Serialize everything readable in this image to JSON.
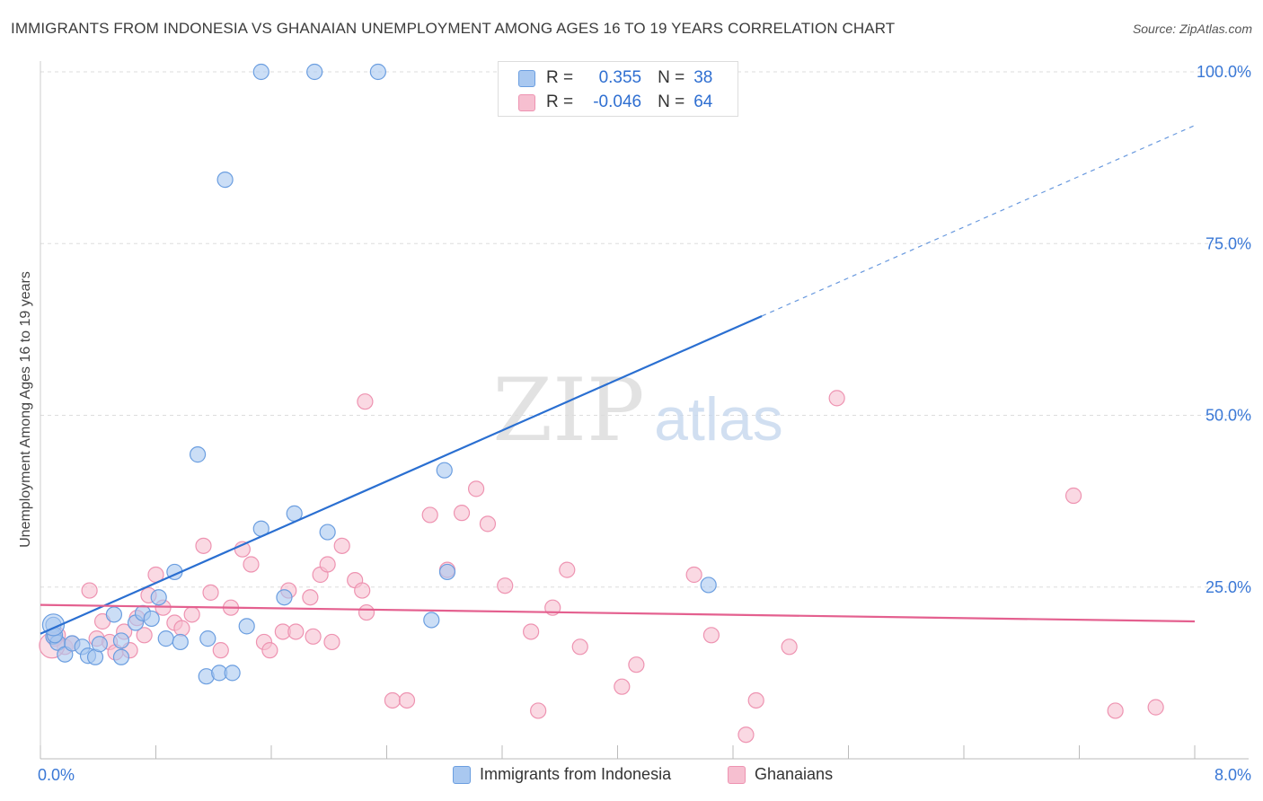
{
  "title": "IMMIGRANTS FROM INDONESIA VS GHANAIAN UNEMPLOYMENT AMONG AGES 16 TO 19 YEARS CORRELATION CHART",
  "source": "Source: ZipAtlas.com",
  "watermark": {
    "zip": "ZIP",
    "atlas": "atlas"
  },
  "legend": {
    "rows": [
      {
        "r_label": "R =",
        "r_value": "0.355",
        "n_label": "N =",
        "n_value": "38"
      },
      {
        "r_label": "R =",
        "r_value": "-0.046",
        "n_label": "N =",
        "n_value": "64"
      }
    ]
  },
  "colors": {
    "blue_fill": "#a9c8f0",
    "blue_stroke": "#6b9ee0",
    "blue_line": "#2a6fd1",
    "pink_fill": "#f6bfd0",
    "pink_stroke": "#ee93b1",
    "pink_line": "#e4608f",
    "tick_label": "#3a78d6",
    "grid": "#dddddd"
  },
  "chart_data": {
    "type": "scatter",
    "title": "IMMIGRANTS FROM INDONESIA VS GHANAIAN UNEMPLOYMENT AMONG AGES 16 TO 19 YEARS CORRELATION CHART",
    "xlabel": "",
    "ylabel": "Unemployment Among Ages 16 to 19 years",
    "xlim": [
      0,
      8
    ],
    "ylim": [
      0,
      100
    ],
    "x_tick_labels": [
      {
        "value": 0,
        "label": "0.0%"
      },
      {
        "value": 8,
        "label": "8.0%"
      }
    ],
    "y_tick_labels": [
      {
        "value": 25,
        "label": "25.0%"
      },
      {
        "value": 50,
        "label": "50.0%"
      },
      {
        "value": 75,
        "label": "75.0%"
      },
      {
        "value": 100,
        "label": "100.0%"
      }
    ],
    "series": [
      {
        "name": "Immigrants from Indonesia",
        "color_key": "blue",
        "trend": {
          "x_start": 0.0,
          "y_start": 18.2,
          "x_solid_end": 5.0,
          "x_end": 8.0,
          "slope": 9.25
        },
        "points": [
          [
            0.09,
            19.5
          ],
          [
            0.09,
            17.8
          ],
          [
            0.12,
            16.9
          ],
          [
            0.17,
            15.2
          ],
          [
            0.22,
            16.8
          ],
          [
            0.29,
            16.3
          ],
          [
            0.33,
            15.0
          ],
          [
            0.38,
            14.8
          ],
          [
            0.41,
            16.7
          ],
          [
            0.51,
            21.0
          ],
          [
            0.56,
            17.2
          ],
          [
            0.56,
            14.8
          ],
          [
            0.66,
            19.8
          ],
          [
            0.71,
            21.2
          ],
          [
            0.77,
            20.4
          ],
          [
            0.82,
            23.5
          ],
          [
            0.87,
            17.5
          ],
          [
            0.93,
            27.2
          ],
          [
            0.97,
            17.0
          ],
          [
            1.09,
            44.3
          ],
          [
            1.16,
            17.5
          ],
          [
            1.15,
            12.0
          ],
          [
            1.24,
            12.5
          ],
          [
            1.33,
            12.5
          ],
          [
            1.43,
            19.3
          ],
          [
            1.53,
            33.5
          ],
          [
            1.69,
            23.5
          ],
          [
            1.76,
            35.7
          ],
          [
            1.99,
            33.0
          ],
          [
            1.28,
            84.3
          ],
          [
            1.53,
            100.0
          ],
          [
            1.9,
            100.0
          ],
          [
            2.34,
            100.0
          ],
          [
            2.71,
            20.2
          ],
          [
            2.8,
            42.0
          ],
          [
            2.82,
            27.2
          ],
          [
            4.63,
            25.3
          ],
          [
            0.1,
            18.0
          ]
        ]
      },
      {
        "name": "Ghanaians",
        "color_key": "pink",
        "trend": {
          "x_start": 0.0,
          "y_start": 22.4,
          "x_end": 8.0,
          "slope": -0.3
        },
        "points": [
          [
            0.12,
            18.0
          ],
          [
            0.17,
            16.3
          ],
          [
            0.22,
            16.8
          ],
          [
            0.34,
            24.5
          ],
          [
            0.39,
            17.5
          ],
          [
            0.43,
            20.0
          ],
          [
            0.48,
            17.0
          ],
          [
            0.52,
            15.5
          ],
          [
            0.58,
            18.5
          ],
          [
            0.62,
            15.8
          ],
          [
            0.67,
            20.5
          ],
          [
            0.72,
            18.0
          ],
          [
            0.75,
            23.8
          ],
          [
            0.8,
            26.8
          ],
          [
            0.85,
            22.0
          ],
          [
            0.93,
            19.8
          ],
          [
            0.98,
            19.0
          ],
          [
            1.05,
            21.0
          ],
          [
            1.13,
            31.0
          ],
          [
            1.18,
            24.2
          ],
          [
            1.25,
            15.8
          ],
          [
            1.32,
            22.0
          ],
          [
            1.4,
            30.5
          ],
          [
            1.46,
            28.3
          ],
          [
            1.55,
            17.0
          ],
          [
            1.59,
            15.8
          ],
          [
            1.68,
            18.5
          ],
          [
            1.72,
            24.5
          ],
          [
            1.77,
            18.5
          ],
          [
            1.87,
            23.5
          ],
          [
            1.89,
            17.8
          ],
          [
            1.94,
            26.8
          ],
          [
            1.99,
            28.3
          ],
          [
            2.02,
            17.0
          ],
          [
            2.09,
            31.0
          ],
          [
            2.18,
            26.0
          ],
          [
            2.23,
            24.5
          ],
          [
            2.26,
            21.3
          ],
          [
            2.25,
            52.0
          ],
          [
            2.44,
            8.5
          ],
          [
            2.54,
            8.5
          ],
          [
            2.7,
            35.5
          ],
          [
            2.82,
            27.5
          ],
          [
            2.92,
            35.8
          ],
          [
            3.02,
            39.3
          ],
          [
            3.1,
            34.2
          ],
          [
            3.22,
            25.2
          ],
          [
            3.4,
            18.5
          ],
          [
            3.45,
            7.0
          ],
          [
            3.55,
            22.0
          ],
          [
            3.65,
            27.5
          ],
          [
            3.74,
            16.3
          ],
          [
            4.03,
            10.5
          ],
          [
            4.13,
            13.7
          ],
          [
            4.53,
            26.8
          ],
          [
            4.65,
            18.0
          ],
          [
            4.89,
            3.5
          ],
          [
            4.96,
            8.5
          ],
          [
            5.19,
            16.3
          ],
          [
            5.52,
            52.5
          ],
          [
            7.16,
            38.3
          ],
          [
            7.45,
            7.0
          ],
          [
            7.73,
            7.5
          ],
          [
            0.1,
            17.5
          ]
        ]
      }
    ]
  }
}
